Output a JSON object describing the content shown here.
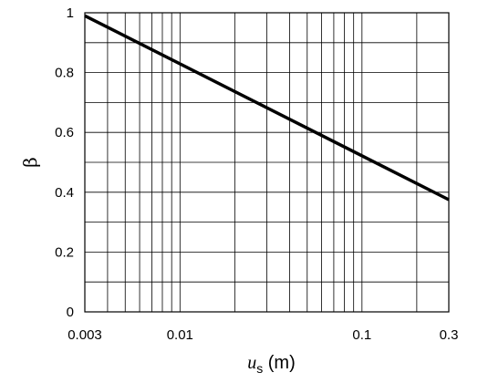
{
  "chart_data": {
    "type": "line",
    "xscale": "log",
    "xlim": [
      0.003,
      0.3
    ],
    "ylim": [
      0,
      1
    ],
    "xlabel_var": "u",
    "xlabel_sub": "s",
    "xlabel_unit": " (m)",
    "ylabel": "β",
    "x_tick_labels": [
      {
        "v": 0.003,
        "label": "0.003"
      },
      {
        "v": 0.01,
        "label": "0.01"
      },
      {
        "v": 0.1,
        "label": "0.1"
      },
      {
        "v": 0.3,
        "label": "0.3"
      }
    ],
    "y_tick_labels": [
      {
        "v": 0,
        "label": "0"
      },
      {
        "v": 0.2,
        "label": "0.2"
      },
      {
        "v": 0.4,
        "label": "0.4"
      },
      {
        "v": 0.6,
        "label": "0.6"
      },
      {
        "v": 0.8,
        "label": "0.8"
      },
      {
        "v": 1,
        "label": "1"
      }
    ],
    "y_grid": [
      0.1,
      0.2,
      0.3,
      0.4,
      0.5,
      0.6,
      0.7,
      0.8,
      0.9
    ],
    "x_grid": [
      0.004,
      0.005,
      0.006,
      0.007,
      0.008,
      0.009,
      0.01,
      0.02,
      0.03,
      0.04,
      0.05,
      0.06,
      0.07,
      0.08,
      0.09,
      0.1,
      0.2
    ],
    "grid": true,
    "series": [
      {
        "color": "#000000",
        "points": [
          [
            0.003,
            0.99
          ],
          [
            0.3,
            0.375
          ]
        ]
      }
    ]
  }
}
